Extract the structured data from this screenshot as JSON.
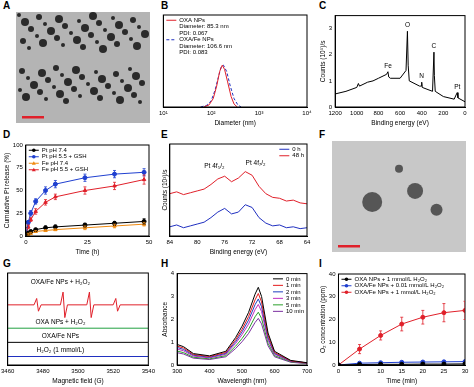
{
  "chart_data": [
    {
      "label": "A",
      "type": "image"
    },
    {
      "label": "B",
      "type": "line",
      "x_label": "Diameter (nm)",
      "log": "x",
      "grid": false,
      "tick_labels": "x",
      "legend": "upper left",
      "xlim": [
        10,
        10000
      ],
      "xticks": [
        {
          "value": 10,
          "label": "10¹"
        },
        {
          "value": 100,
          "label": "10²"
        },
        {
          "value": 1000,
          "label": "10³"
        },
        {
          "value": 10000,
          "label": "10⁴"
        }
      ],
      "ylim": [
        0,
        22
      ],
      "series": [
        {
          "name": "OXA NPs",
          "notes": [
            "Diameter: 85.3 nm",
            "PDI: 0.067"
          ],
          "color": "#e0202a",
          "line_style": "solid",
          "x": [
            70,
            90,
            110,
            130,
            150,
            170,
            190,
            220,
            260,
            300,
            350
          ],
          "values": [
            0,
            0.5,
            2,
            5,
            8.5,
            10,
            9,
            6,
            2.5,
            0.7,
            0
          ]
        },
        {
          "name": "OXA/Fe NPs",
          "notes": [
            "Diameter: 106.6 nm",
            "PDI: 0.083"
          ],
          "color": "#2030c0",
          "line_style": "dashed",
          "x": [
            60,
            80,
            100,
            120,
            140,
            160,
            180,
            210,
            250,
            300,
            360,
            420
          ],
          "values": [
            0,
            0.4,
            1.5,
            4,
            7,
            9.5,
            10,
            8.5,
            5,
            2,
            0.5,
            0
          ]
        }
      ]
    },
    {
      "label": "C",
      "type": "line",
      "x_label": "Binding energy (eV)",
      "y_label": "Counts (10⁵)/s",
      "grid": false,
      "xlim": [
        1200,
        0
      ],
      "xticks": [
        1200,
        1000,
        800,
        600,
        400,
        200,
        0
      ],
      "ylim": [
        0,
        3.5
      ],
      "yticks": [
        0,
        1,
        2,
        3
      ],
      "x": [
        1200,
        1100,
        1000,
        985,
        975,
        900,
        850,
        800,
        725,
        712,
        705,
        690,
        600,
        545,
        532,
        525,
        515,
        420,
        405,
        400,
        395,
        300,
        287,
        283,
        275,
        200,
        100,
        78,
        72,
        65,
        0
      ],
      "series": [
        {
          "color": "#000000",
          "line_style": "solid",
          "values": [
            0.5,
            0.6,
            0.75,
            0.9,
            0.8,
            0.95,
            1.0,
            1.1,
            1.25,
            1.35,
            1.15,
            1.1,
            1.1,
            1.4,
            2.9,
            1.6,
            1.0,
            0.8,
            0.8,
            0.95,
            0.75,
            0.6,
            2.1,
            1.2,
            0.6,
            0.4,
            0.3,
            0.5,
            0.55,
            0.35,
            0.2
          ]
        }
      ],
      "annotations": [
        {
          "text": "Fe",
          "x": 712,
          "y": 1.45
        },
        {
          "text": "O",
          "x": 532,
          "y": 3.0
        },
        {
          "text": "N",
          "x": 400,
          "y": 1.05
        },
        {
          "text": "C",
          "x": 287,
          "y": 2.2
        },
        {
          "text": "Pt",
          "x": 72,
          "y": 0.65
        }
      ]
    },
    {
      "label": "D",
      "type": "line",
      "x_label": "Time (h)",
      "y_label": "Cumulative Pt release (%)",
      "grid": false,
      "legend": "upper left",
      "xlim": [
        0,
        50
      ],
      "xticks": [
        0,
        25,
        50
      ],
      "ylim": [
        0,
        100
      ],
      "yticks": [
        0,
        25,
        50,
        75,
        100
      ],
      "x": [
        0,
        1,
        2,
        4,
        8,
        12,
        24,
        36,
        48
      ],
      "series": [
        {
          "name": "Pt pH 7.4",
          "color": "#000000",
          "marker": "circle",
          "line_style": "solid",
          "values": [
            0,
            3,
            5,
            7,
            9,
            10,
            12,
            14,
            16
          ],
          "errors": [
            0,
            1,
            1,
            1,
            2,
            2,
            2,
            2,
            3
          ]
        },
        {
          "name": "Pt pH 5.5 + GSH",
          "color": "#2040d0",
          "marker": "circle",
          "line_style": "solid",
          "values": [
            0,
            15,
            25,
            38,
            50,
            57,
            64,
            68,
            70
          ],
          "errors": [
            0,
            2,
            3,
            3,
            4,
            4,
            4,
            4,
            4
          ]
        },
        {
          "name": "Fe pH 7.4",
          "color": "#f08a10",
          "marker": "triangle",
          "line_style": "solid",
          "values": [
            0,
            2,
            3,
            5,
            6,
            7,
            9,
            11,
            13
          ],
          "errors": [
            0,
            1,
            1,
            1,
            1,
            1,
            2,
            2,
            2
          ]
        },
        {
          "name": "Fe pH 5.5 + GSH",
          "color": "#e0202a",
          "marker": "triangle",
          "line_style": "solid",
          "values": [
            0,
            10,
            18,
            27,
            37,
            43,
            50,
            55,
            62
          ],
          "errors": [
            0,
            2,
            2,
            3,
            3,
            3,
            4,
            4,
            5
          ]
        }
      ]
    },
    {
      "label": "E",
      "type": "line",
      "x_label": "Binding energy (eV)",
      "y_label": "Counts (10³)/s",
      "grid": false,
      "tick_labels": "x",
      "legend": "upper right",
      "xlim": [
        84,
        64
      ],
      "xticks": [
        84,
        80,
        76,
        72,
        68,
        64
      ],
      "ylim": [
        0,
        10
      ],
      "x": [
        84,
        83,
        82,
        81,
        80,
        79,
        78,
        77,
        76,
        75,
        74,
        73,
        72,
        71,
        70,
        69,
        68,
        67,
        66,
        65,
        64
      ],
      "series": [
        {
          "name": "0 h",
          "color": "#2030c0",
          "line_style": "solid",
          "values": [
            1.0,
            1.2,
            0.9,
            1.1,
            1.3,
            1.5,
            2.0,
            2.6,
            3.0,
            2.4,
            2.6,
            3.4,
            3.1,
            2.0,
            1.4,
            1.1,
            1.2,
            0.9,
            1.0,
            0.8,
            0.9
          ]
        },
        {
          "name": "48 h",
          "color": "#e0202a",
          "line_style": "solid",
          "values": [
            4.6,
            4.8,
            4.5,
            4.7,
            4.9,
            5.1,
            5.6,
            6.2,
            6.5,
            5.9,
            6.3,
            7.0,
            6.6,
            5.4,
            4.6,
            4.2,
            4.1,
            3.8,
            3.9,
            3.6,
            3.5
          ]
        }
      ],
      "annotations": [
        {
          "text": "Pt 4f₅/₂",
          "x": 77.5,
          "y": 7.2
        },
        {
          "text": "Pt 4f₇/₂",
          "x": 71.5,
          "y": 7.6
        }
      ]
    },
    {
      "label": "F",
      "type": "image"
    },
    {
      "label": "G",
      "type": "line",
      "x_label": "Magnetic field (G)",
      "grid": false,
      "tick_labels": "x",
      "xlim": [
        3460,
        3540
      ],
      "xticks": [
        3460,
        3480,
        3500,
        3520,
        3540
      ],
      "ylim": [
        0,
        13
      ],
      "series": [
        {
          "color": "#e0202a",
          "line_style": "solid",
          "x": [
            3460,
            3475,
            3476.5,
            3477.5,
            3479,
            3490,
            3491.5,
            3492.5,
            3494,
            3505,
            3506.5,
            3507.5,
            3509,
            3520,
            3521.5,
            3522.5,
            3524,
            3540
          ],
          "values": [
            8.5,
            8.5,
            9.4,
            7.6,
            8.5,
            8.5,
            10.3,
            6.7,
            8.5,
            8.5,
            10.3,
            6.7,
            8.5,
            8.5,
            9.4,
            7.6,
            8.5,
            8.5
          ]
        },
        {
          "color": "#20a040",
          "line_style": "solid",
          "x": [
            3460,
            3540
          ],
          "values": [
            5.2,
            5.2
          ]
        },
        {
          "color": "#000000",
          "line_style": "solid",
          "x": [
            3460,
            3540
          ],
          "values": [
            3.2,
            3.2
          ]
        },
        {
          "color": "#2030c0",
          "line_style": "solid",
          "x": [
            3460,
            3540
          ],
          "values": [
            1.2,
            1.2
          ]
        }
      ],
      "annotations": [
        {
          "text": "OXA/Fe NPs + H₂O₂",
          "x": 3490,
          "y": 11.3
        },
        {
          "text": "OXA NPs + H₂O₂",
          "x": 3490,
          "y": 5.6
        },
        {
          "text": "OXA/Fe NPs",
          "x": 3490,
          "y": 3.6
        },
        {
          "text": "H₂O₂ (1 mmol/L)",
          "x": 3490,
          "y": 1.6
        }
      ]
    },
    {
      "label": "H",
      "type": "line",
      "x_label": "Wavelength (nm)",
      "y_label": "Absorbance",
      "grid": false,
      "legend": "upper right",
      "xlim": [
        300,
        700
      ],
      "xticks": [
        300,
        400,
        500,
        600,
        700
      ],
      "ylim": [
        0,
        4
      ],
      "yticks": [
        0,
        1,
        2,
        3,
        4
      ],
      "x": [
        300,
        320,
        350,
        400,
        450,
        480,
        500,
        520,
        540,
        550,
        560,
        580,
        600,
        650,
        700
      ],
      "series": [
        {
          "name": "0 min",
          "color": "#000000",
          "line_style": "solid",
          "values": [
            0.9,
            0.8,
            0.5,
            0.4,
            0.6,
            1.2,
            1.7,
            2.3,
            3.1,
            3.4,
            3.0,
            1.4,
            0.6,
            0.2,
            0.1
          ]
        },
        {
          "name": "1 min",
          "color": "#e41a1c",
          "line_style": "solid",
          "values": [
            0.83,
            0.74,
            0.46,
            0.37,
            0.55,
            1.1,
            1.56,
            2.12,
            2.85,
            3.13,
            2.76,
            1.29,
            0.55,
            0.18,
            0.09
          ]
        },
        {
          "name": "2 min",
          "color": "#1f3fbf",
          "line_style": "solid",
          "values": [
            0.77,
            0.68,
            0.43,
            0.34,
            0.51,
            1.02,
            1.45,
            1.96,
            2.64,
            2.89,
            2.55,
            1.19,
            0.51,
            0.17,
            0.09
          ]
        },
        {
          "name": "3 min",
          "color": "#c02cc0",
          "line_style": "solid",
          "values": [
            0.7,
            0.62,
            0.39,
            0.31,
            0.47,
            0.94,
            1.33,
            1.79,
            2.42,
            2.65,
            2.34,
            1.09,
            0.47,
            0.16,
            0.08
          ]
        },
        {
          "name": "5 min",
          "color": "#2ca02c",
          "line_style": "solid",
          "values": [
            0.61,
            0.54,
            0.34,
            0.27,
            0.41,
            0.82,
            1.16,
            1.56,
            2.11,
            2.31,
            2.04,
            0.95,
            0.41,
            0.14,
            0.07
          ]
        },
        {
          "name": "10 min",
          "color": "#7b2fa0",
          "line_style": "solid",
          "values": [
            0.54,
            0.48,
            0.3,
            0.24,
            0.36,
            0.72,
            1.02,
            1.38,
            1.86,
            2.04,
            1.8,
            0.84,
            0.36,
            0.12,
            0.06
          ]
        }
      ]
    },
    {
      "label": "I",
      "type": "line",
      "x_label": "Time (min)",
      "y_label": "O₂ concentration (ppm)",
      "grid": false,
      "legend": "upper left",
      "xlim": [
        0,
        30
      ],
      "xticks": [
        0,
        5,
        10,
        15,
        20,
        25,
        30
      ],
      "ylim": [
        0,
        40
      ],
      "yticks": [
        0,
        10,
        20,
        30,
        40
      ],
      "x": [
        0,
        5,
        10,
        15,
        20,
        25,
        30
      ],
      "series": [
        {
          "name": "OXA NPs + 1 mmol/L H₂O₂",
          "color": "#000000",
          "marker": "circle",
          "line_style": "solid",
          "values": [
            0,
            0.2,
            0.3,
            0.3,
            0.4,
            0.4,
            0.5
          ]
        },
        {
          "name": "OXA/Fe NPs + 0.01 mmol/L H₂O₂",
          "color": "#2040d0",
          "marker": "circle",
          "line_style": "solid",
          "values": [
            0,
            0.8,
            1.0,
            1.2,
            1.3,
            1.4,
            1.5
          ]
        },
        {
          "name": "OXA/Fe NPs + 1 mmol/L H₂O₂",
          "color": "#e0202a",
          "marker": "circle",
          "line_style": "solid",
          "values": [
            0,
            7,
            13,
            18,
            21,
            23,
            24
          ],
          "errors": [
            0,
            2,
            2,
            3,
            3,
            4,
            4
          ]
        }
      ]
    }
  ]
}
